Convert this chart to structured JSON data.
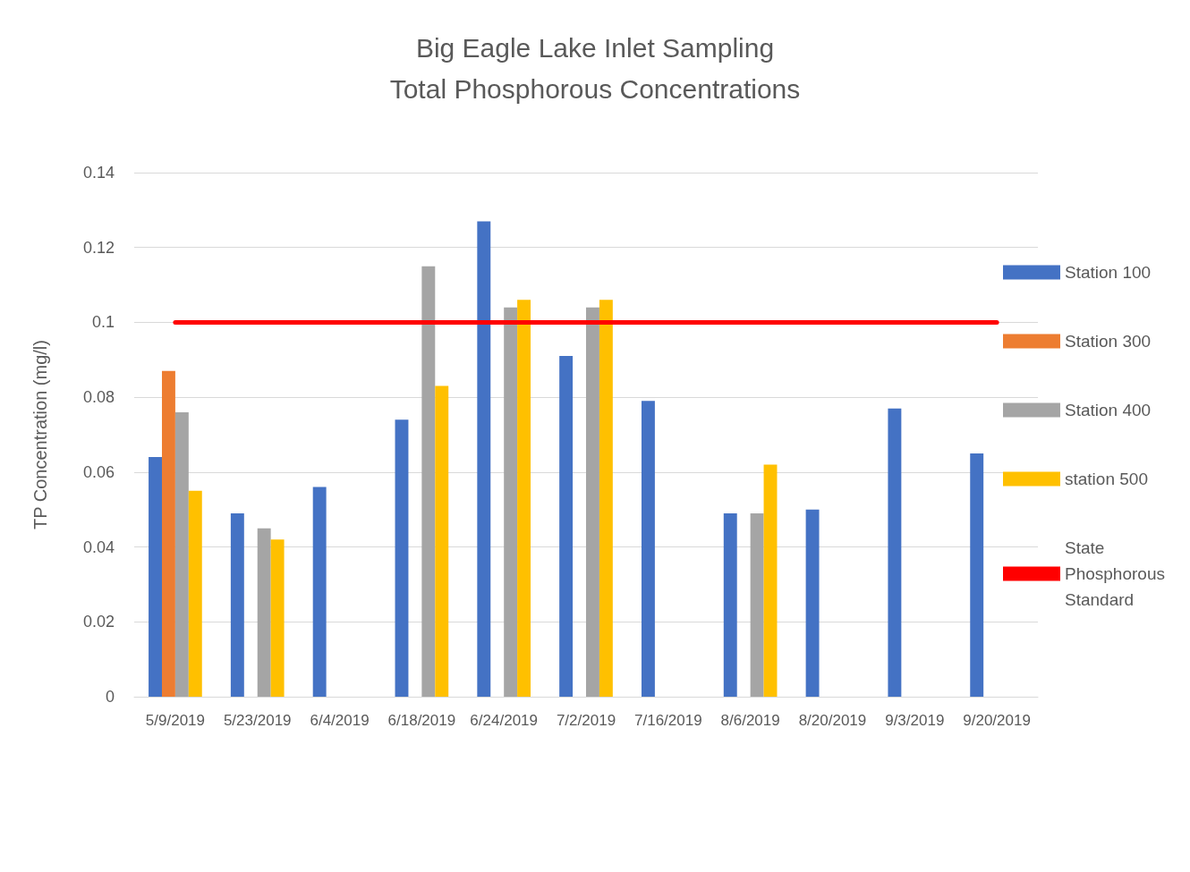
{
  "chart_data": {
    "type": "bar",
    "title": "Big Eagle Lake Inlet Sampling\nTotal Phosphorous Concentrations",
    "ylabel": "TP Concentration (mg/l)",
    "categories": [
      "5/9/2019",
      "5/23/2019",
      "6/4/2019",
      "6/18/2019",
      "6/24/2019",
      "7/2/2019",
      "7/16/2019",
      "8/6/2019",
      "8/20/2019",
      "9/3/2019",
      "9/20/2019"
    ],
    "series": [
      {
        "name": "Station 100",
        "color": "#4472c4",
        "values": [
          0.064,
          0.049,
          0.056,
          0.074,
          0.127,
          0.091,
          0.079,
          0.049,
          0.05,
          0.077,
          0.065
        ]
      },
      {
        "name": "Station 300",
        "color": "#ed7d31",
        "values": [
          0.087,
          null,
          null,
          null,
          null,
          null,
          null,
          null,
          null,
          null,
          null
        ]
      },
      {
        "name": "Station 400",
        "color": "#a5a5a5",
        "values": [
          0.076,
          0.045,
          null,
          0.115,
          0.104,
          0.104,
          null,
          0.049,
          null,
          null,
          null
        ]
      },
      {
        "name": "station 500",
        "color": "#ffc000",
        "values": [
          0.055,
          0.042,
          null,
          0.083,
          0.106,
          0.106,
          null,
          0.062,
          null,
          null,
          null
        ]
      },
      {
        "name": "State Phosphorous Standard",
        "type": "line",
        "color": "#ff0000",
        "marker": "none",
        "values": [
          0.1,
          0.1,
          0.1,
          0.1,
          0.1,
          0.1,
          0.1,
          0.1,
          0.1,
          0.1,
          0.1
        ]
      }
    ],
    "ylim": [
      0,
      0.14
    ],
    "yticks": [
      0,
      0.02,
      0.04,
      0.06,
      0.08,
      0.1,
      0.12,
      0.14
    ],
    "grid": "y",
    "legend": "right"
  }
}
